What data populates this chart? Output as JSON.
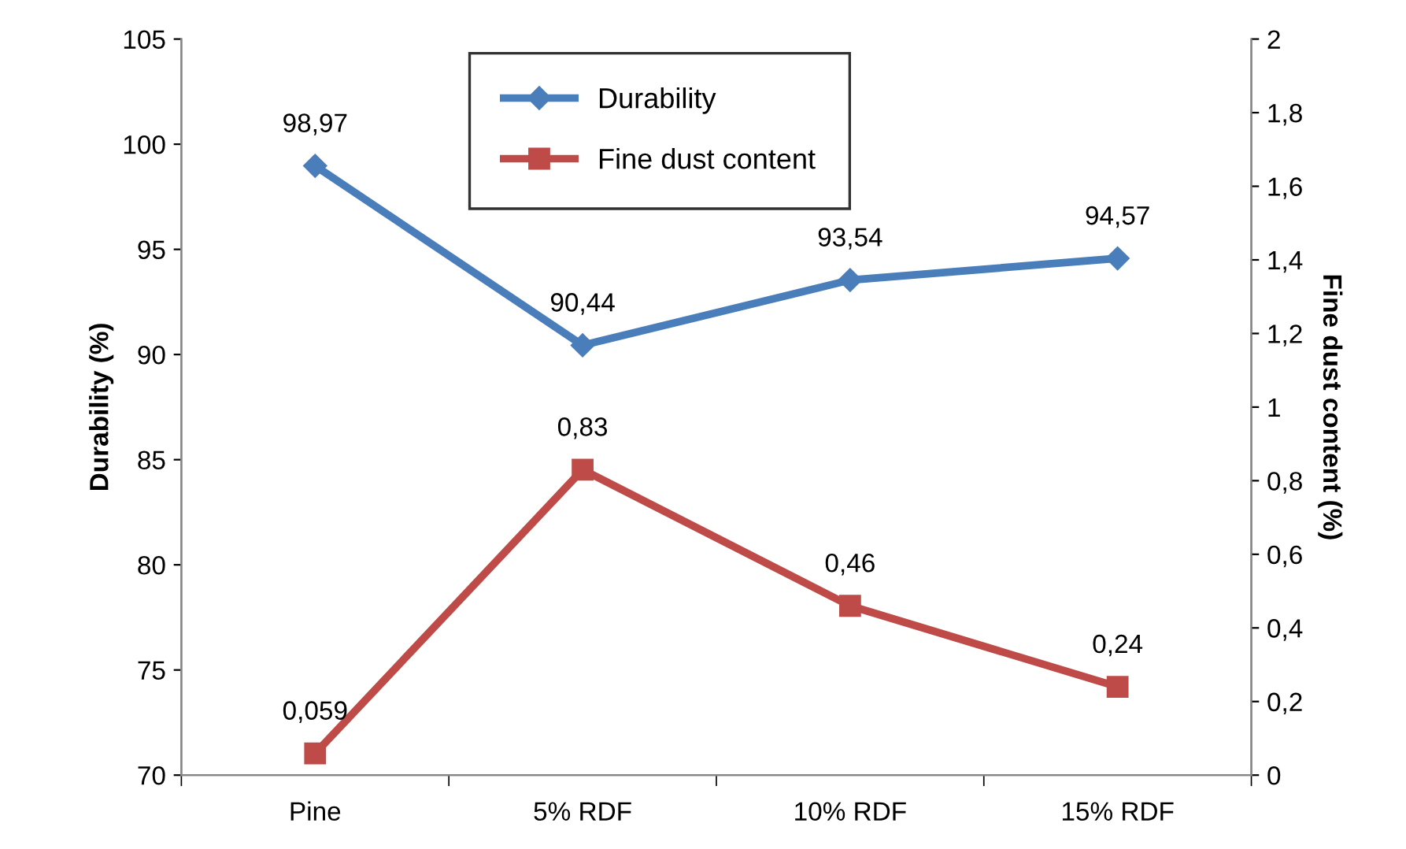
{
  "chart_data": {
    "type": "line",
    "ylabel": "Durability (%)",
    "y2label": "Fine dust content (%)",
    "categories": [
      "Pine",
      "5% RDF",
      "10% RDF",
      "15% RDF"
    ],
    "series": [
      {
        "name": "Durability",
        "color": "#4a7ebb",
        "values": [
          98.97,
          90.44,
          93.54,
          94.57
        ],
        "marker": "diamond",
        "value_labels": [
          "98,97",
          "90,44",
          "93,54",
          "94,57"
        ]
      },
      {
        "name": "Fine dust content",
        "color": "#be4b48",
        "values": [
          0.059,
          0.83,
          0.46,
          0.24
        ],
        "marker": "square",
        "axis": "y2",
        "value_labels": [
          "0,059",
          "0,83",
          "0,46",
          "0,24"
        ]
      }
    ],
    "ylim": [
      70,
      105
    ],
    "yticks": [
      70,
      75,
      80,
      85,
      90,
      95,
      100,
      105
    ],
    "y2lim": [
      0,
      2
    ],
    "y2ticks": [
      0,
      {
        "value": 0.2,
        "label": "0,2"
      },
      {
        "value": 0.4,
        "label": "0,4"
      },
      {
        "value": 0.6,
        "label": "0,6"
      },
      {
        "value": 0.8,
        "label": "0,8"
      },
      1,
      {
        "value": 1.2,
        "label": "1,2"
      },
      {
        "value": 1.4,
        "label": "1,4"
      },
      {
        "value": 1.6,
        "label": "1,6"
      },
      {
        "value": 1.8,
        "label": "1,8"
      },
      2
    ],
    "grid": false,
    "legend": "top",
    "line_style": "solid"
  }
}
